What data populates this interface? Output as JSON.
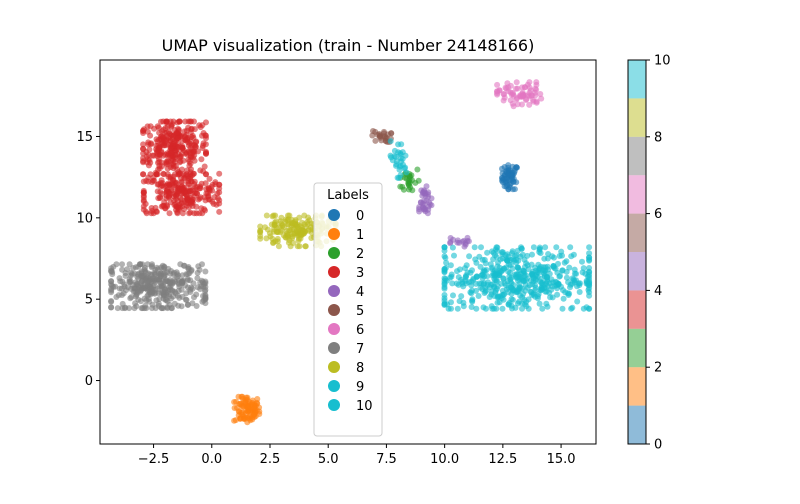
{
  "chart_data": {
    "type": "scatter",
    "title": "UMAP visualization (train - Number 24148166)",
    "xlabel": "",
    "ylabel": "",
    "xlim": [
      -4.8,
      16.5
    ],
    "ylim": [
      -3.9,
      19.7
    ],
    "x_ticks": [
      -2.5,
      0.0,
      2.5,
      5.0,
      7.5,
      10.0,
      12.5,
      15.0
    ],
    "x_tick_labels": [
      "−2.5",
      "0.0",
      "2.5",
      "5.0",
      "7.5",
      "10.0",
      "12.5",
      "15.0"
    ],
    "y_ticks": [
      0,
      5,
      10,
      15
    ],
    "y_tick_labels": [
      "0",
      "5",
      "10",
      "15"
    ],
    "grid": false,
    "legend": {
      "title": "Labels",
      "position": "center",
      "entries": [
        "0",
        "1",
        "2",
        "3",
        "4",
        "5",
        "6",
        "7",
        "8",
        "9",
        "10"
      ]
    },
    "colorbar": {
      "range": [
        0,
        10
      ],
      "tick_labels": [
        "0",
        "2",
        "4",
        "6",
        "8",
        "10"
      ],
      "colors": [
        "#1f77b4",
        "#ff7f0e",
        "#2ca02c",
        "#d62728",
        "#9467bd",
        "#8c564b",
        "#e377c2",
        "#7f7f7f",
        "#bcbd22",
        "#17becf"
      ]
    },
    "label_colors": {
      "0": "#1f77b4",
      "1": "#ff7f0e",
      "2": "#2ca02c",
      "3": "#d62728",
      "4": "#9467bd",
      "5": "#8c564b",
      "6": "#e377c2",
      "7": "#7f7f7f",
      "8": "#bcbd22",
      "9": "#17becf",
      "10": "#17becf"
    },
    "clusters": [
      {
        "label": "0",
        "center": [
          12.8,
          12.5
        ],
        "spread": [
          0.25,
          0.55
        ],
        "points": 60
      },
      {
        "label": "1",
        "center": [
          1.5,
          -1.8
        ],
        "spread": [
          0.4,
          0.6
        ],
        "points": 90
      },
      {
        "label": "2",
        "center": [
          8.5,
          12.3
        ],
        "spread": [
          0.3,
          0.6
        ],
        "points": 25
      },
      {
        "label": "3",
        "center": [
          -1.6,
          14.3
        ],
        "spread": [
          1.0,
          1.2
        ],
        "points": 300
      },
      {
        "label": "3",
        "center": [
          -1.3,
          11.5
        ],
        "spread": [
          1.2,
          0.9
        ],
        "points": 250
      },
      {
        "label": "4",
        "center": [
          9.1,
          11.0
        ],
        "spread": [
          0.25,
          0.7
        ],
        "points": 35
      },
      {
        "label": "4",
        "center": [
          10.5,
          8.5
        ],
        "spread": [
          0.4,
          0.2
        ],
        "points": 15
      },
      {
        "label": "5",
        "center": [
          7.3,
          15.0
        ],
        "spread": [
          0.3,
          0.25
        ],
        "points": 25
      },
      {
        "label": "6",
        "center": [
          13.2,
          17.6
        ],
        "spread": [
          0.7,
          0.55
        ],
        "points": 70
      },
      {
        "label": "7",
        "center": [
          -2.3,
          5.8
        ],
        "spread": [
          1.5,
          1.0
        ],
        "points": 350
      },
      {
        "label": "8",
        "center": [
          3.7,
          9.2
        ],
        "spread": [
          1.2,
          0.7
        ],
        "points": 180
      },
      {
        "label": "9",
        "center": [
          13.1,
          6.3
        ],
        "spread": [
          2.3,
          1.4
        ],
        "points": 500
      },
      {
        "label": "9",
        "center": [
          8.0,
          13.5
        ],
        "spread": [
          0.3,
          0.9
        ],
        "points": 30
      }
    ]
  }
}
